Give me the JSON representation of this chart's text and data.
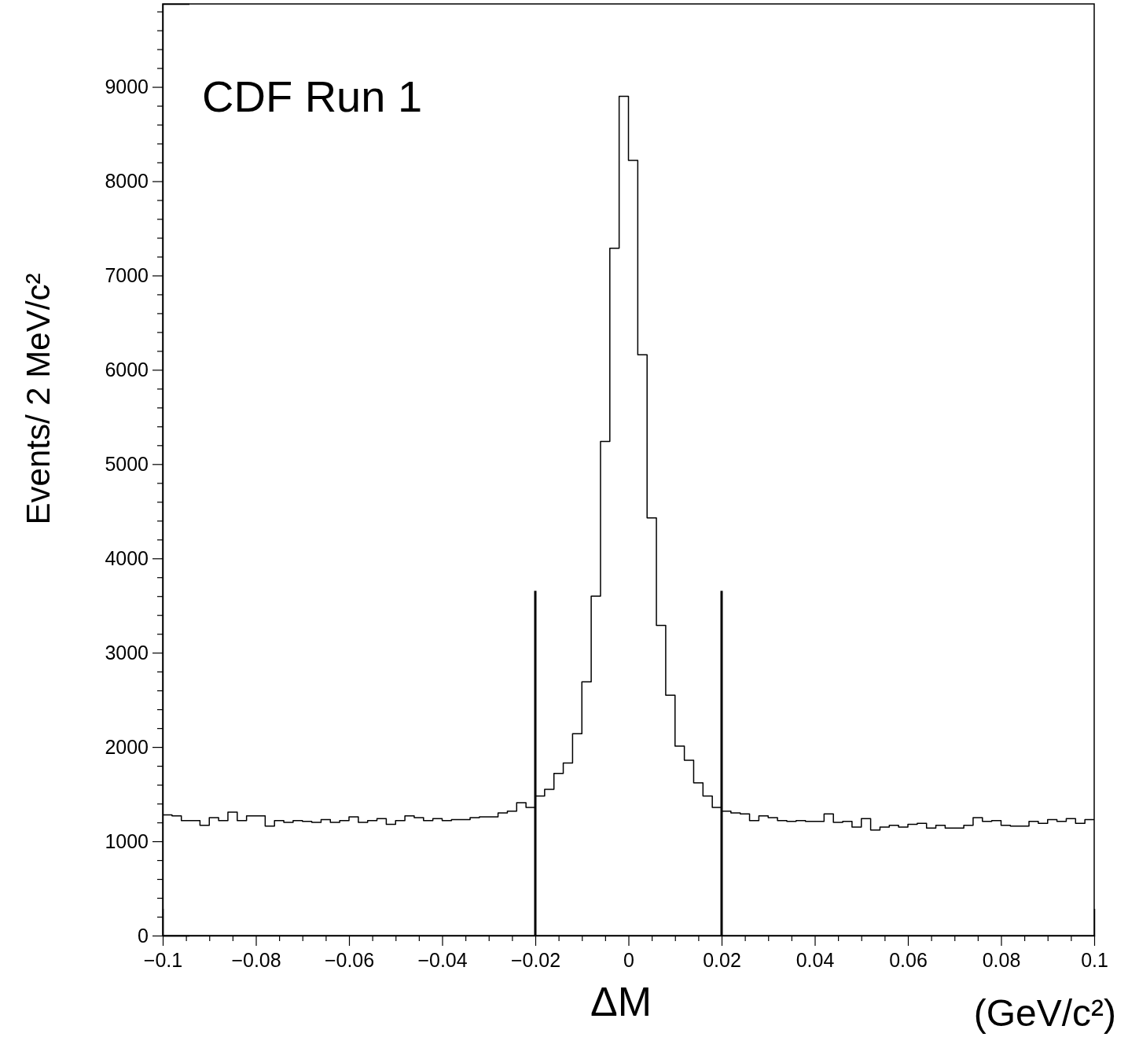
{
  "chart_data": {
    "type": "histogram",
    "title": "CDF Run 1",
    "xlabel": "ΔM",
    "ylabel": "Events/ 2 MeV/c²",
    "annotations": [
      "(GeV/c²)"
    ],
    "color": "#000000",
    "bins": [
      -0.1,
      -0.098,
      -0.096,
      -0.094,
      -0.092,
      -0.09,
      -0.088,
      -0.086,
      -0.084,
      -0.082,
      -0.08,
      -0.078,
      -0.076,
      -0.074,
      -0.072,
      -0.07,
      -0.068,
      -0.066,
      -0.064,
      -0.062,
      -0.06,
      -0.058,
      -0.056,
      -0.054,
      -0.052,
      -0.05,
      -0.048,
      -0.046,
      -0.044,
      -0.042,
      -0.04,
      -0.038,
      -0.036,
      -0.034,
      -0.032,
      -0.03,
      -0.028,
      -0.026,
      -0.024,
      -0.022,
      -0.02,
      -0.018,
      -0.016,
      -0.014,
      -0.012,
      -0.01,
      -0.008,
      -0.006,
      -0.004,
      -0.002,
      0,
      0.002,
      0.004,
      0.006,
      0.008,
      0.01,
      0.012,
      0.014,
      0.016,
      0.018,
      0.02,
      0.022,
      0.024,
      0.026,
      0.028,
      0.03,
      0.032,
      0.034,
      0.036,
      0.038,
      0.04,
      0.042,
      0.044,
      0.046,
      0.048,
      0.05,
      0.052,
      0.054,
      0.056,
      0.058,
      0.06,
      0.062,
      0.064,
      0.066,
      0.068,
      0.07,
      0.072,
      0.074,
      0.076,
      0.078,
      0.08,
      0.082,
      0.084,
      0.086,
      0.088,
      0.09,
      0.092,
      0.094,
      0.096,
      0.098,
      0.1
    ],
    "values": [
      1280,
      1270,
      1220,
      1220,
      1170,
      1250,
      1220,
      1310,
      1220,
      1270,
      1270,
      1160,
      1220,
      1200,
      1220,
      1210,
      1200,
      1230,
      1200,
      1220,
      1260,
      1200,
      1220,
      1240,
      1180,
      1220,
      1270,
      1250,
      1220,
      1240,
      1220,
      1230,
      1230,
      1250,
      1260,
      1260,
      1300,
      1320,
      1410,
      1360,
      1480,
      1550,
      1720,
      1830,
      2140,
      2690,
      3600,
      5240,
      7290,
      8900,
      8220,
      6160,
      4430,
      3290,
      2550,
      2010,
      1860,
      1620,
      1480,
      1360,
      1320,
      1300,
      1290,
      1220,
      1270,
      1250,
      1220,
      1210,
      1220,
      1210,
      1210,
      1290,
      1200,
      1210,
      1150,
      1240,
      1120,
      1150,
      1170,
      1150,
      1180,
      1190,
      1140,
      1170,
      1140,
      1140,
      1170,
      1250,
      1210,
      1220,
      1170,
      1160,
      1160,
      1210,
      1190,
      1230,
      1210,
      1240,
      1190,
      1230
    ],
    "xlim": [
      -0.1,
      0.1
    ],
    "xticks": [
      {
        "value": -0.1,
        "label": "−0.1"
      },
      {
        "value": -0.095,
        "label": null
      },
      {
        "value": -0.09,
        "label": null
      },
      {
        "value": -0.085,
        "label": null
      },
      {
        "value": -0.08,
        "label": "−0.08"
      },
      {
        "value": -0.075,
        "label": null
      },
      {
        "value": -0.07,
        "label": null
      },
      {
        "value": -0.065,
        "label": null
      },
      {
        "value": -0.06,
        "label": "−0.06"
      },
      {
        "value": -0.055,
        "label": null
      },
      {
        "value": -0.05,
        "label": null
      },
      {
        "value": -0.045,
        "label": null
      },
      {
        "value": -0.04,
        "label": "−0.04"
      },
      {
        "value": -0.035,
        "label": null
      },
      {
        "value": -0.03,
        "label": null
      },
      {
        "value": -0.025,
        "label": null
      },
      {
        "value": -0.02,
        "label": "−0.02"
      },
      {
        "value": -0.015,
        "label": null
      },
      {
        "value": -0.01,
        "label": null
      },
      {
        "value": -0.005,
        "label": null
      },
      0,
      {
        "value": 0.005,
        "label": null
      },
      {
        "value": 0.01,
        "label": null
      },
      {
        "value": 0.015,
        "label": null
      },
      0.02,
      {
        "value": 0.025,
        "label": null
      },
      {
        "value": 0.03,
        "label": null
      },
      {
        "value": 0.035,
        "label": null
      },
      0.04,
      {
        "value": 0.045,
        "label": null
      },
      {
        "value": 0.05,
        "label": null
      },
      {
        "value": 0.055,
        "label": null
      },
      0.06,
      {
        "value": 0.065,
        "label": null
      },
      {
        "value": 0.07,
        "label": null
      },
      {
        "value": 0.075,
        "label": null
      },
      0.08,
      {
        "value": 0.085,
        "label": null
      },
      {
        "value": 0.09,
        "label": null
      },
      {
        "value": 0.095,
        "label": null
      },
      0.1
    ],
    "ylim": [
      0,
      9880
    ],
    "yticks": [
      0,
      {
        "value": 200,
        "label": null
      },
      {
        "value": 400,
        "label": null
      },
      {
        "value": 600,
        "label": null
      },
      {
        "value": 800,
        "label": null
      },
      1000,
      {
        "value": 1200,
        "label": null
      },
      {
        "value": 1400,
        "label": null
      },
      {
        "value": 1600,
        "label": null
      },
      {
        "value": 1800,
        "label": null
      },
      2000,
      {
        "value": 2200,
        "label": null
      },
      {
        "value": 2400,
        "label": null
      },
      {
        "value": 2600,
        "label": null
      },
      {
        "value": 2800,
        "label": null
      },
      3000,
      {
        "value": 3200,
        "label": null
      },
      {
        "value": 3400,
        "label": null
      },
      {
        "value": 3600,
        "label": null
      },
      {
        "value": 3800,
        "label": null
      },
      4000,
      {
        "value": 4200,
        "label": null
      },
      {
        "value": 4400,
        "label": null
      },
      {
        "value": 4600,
        "label": null
      },
      {
        "value": 4800,
        "label": null
      },
      5000,
      {
        "value": 5200,
        "label": null
      },
      {
        "value": 5400,
        "label": null
      },
      {
        "value": 5600,
        "label": null
      },
      {
        "value": 5800,
        "label": null
      },
      6000,
      {
        "value": 6200,
        "label": null
      },
      {
        "value": 6400,
        "label": null
      },
      {
        "value": 6600,
        "label": null
      },
      {
        "value": 6800,
        "label": null
      },
      7000,
      {
        "value": 7200,
        "label": null
      },
      {
        "value": 7400,
        "label": null
      },
      {
        "value": 7600,
        "label": null
      },
      {
        "value": 7800,
        "label": null
      },
      8000,
      {
        "value": 8200,
        "label": null
      },
      {
        "value": 8400,
        "label": null
      },
      {
        "value": 8600,
        "label": null
      },
      {
        "value": 8800,
        "label": null
      },
      9000,
      {
        "value": 9200,
        "label": null
      },
      {
        "value": 9400,
        "label": null
      },
      {
        "value": 9600,
        "label": null
      },
      {
        "value": 9800,
        "label": null
      }
    ],
    "ref_lines": [
      {
        "axis": "x",
        "value": -0.02,
        "color": "#000000"
      },
      {
        "axis": "x",
        "value": 0.02,
        "color": "#000000"
      }
    ],
    "grid": false,
    "legend": false
  }
}
